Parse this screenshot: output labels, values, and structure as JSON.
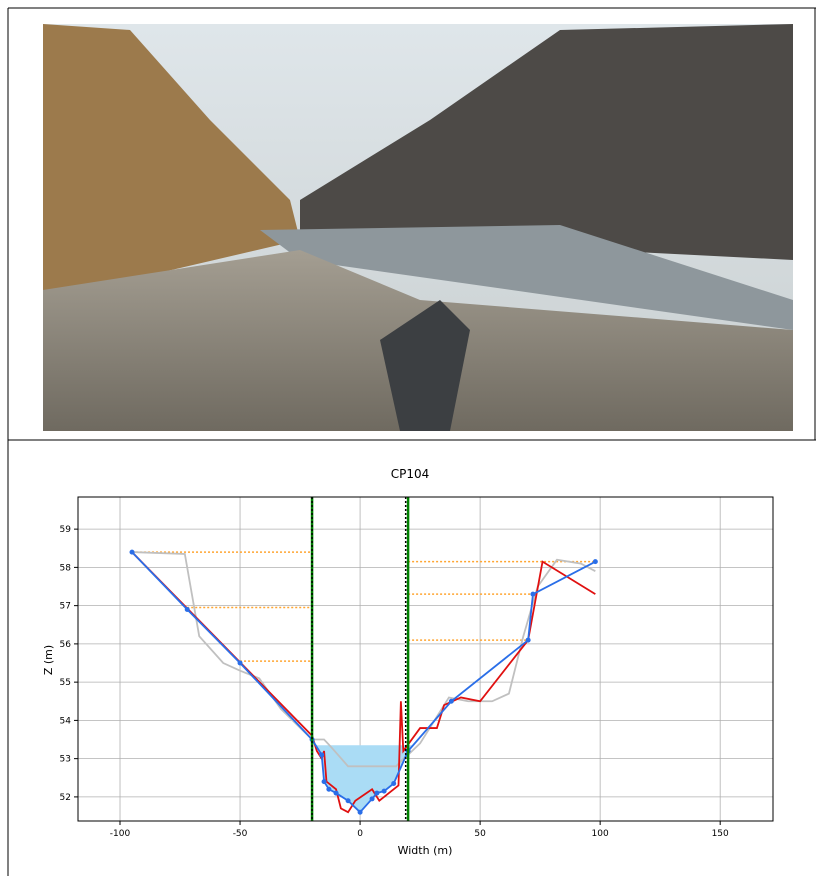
{
  "chart_data": {
    "type": "line",
    "title": "CP104",
    "xlabel": "Width (m)",
    "ylabel": "Z (m)",
    "xlim": [
      -117.5,
      172
    ],
    "ylim": [
      51.37,
      59.84
    ],
    "xticks": [
      -100,
      -50,
      0,
      50,
      100,
      150
    ],
    "yticks": [
      52,
      53,
      54,
      55,
      56,
      57,
      58,
      59
    ],
    "grid": true,
    "water_level": 53.35,
    "water_color": "#aadcf5",
    "series": [
      {
        "color": "#c0c0c0",
        "x": [
          -95,
          -73,
          -67,
          -57,
          -50,
          -42,
          -33,
          -20,
          -15,
          -12,
          -5,
          15,
          18,
          20,
          25,
          30,
          37,
          45,
          55,
          62,
          68,
          74,
          82,
          92,
          98
        ],
        "values": [
          58.4,
          58.35,
          56.2,
          55.5,
          55.3,
          55.1,
          54.3,
          53.5,
          53.5,
          53.3,
          52.8,
          52.8,
          53.0,
          53.1,
          53.4,
          53.9,
          54.6,
          54.5,
          54.5,
          54.7,
          56.2,
          57.5,
          58.2,
          58.1,
          57.9
        ]
      },
      {
        "color": "#e01010",
        "x": [
          -95,
          -20,
          -18,
          -16,
          -15,
          -14,
          -10,
          -8,
          -5,
          -2,
          5,
          8,
          12,
          16,
          17,
          18,
          25,
          32,
          35,
          42,
          50,
          70,
          76,
          98
        ],
        "values": [
          58.4,
          53.6,
          53.2,
          53.0,
          53.2,
          52.4,
          52.2,
          51.7,
          51.6,
          51.9,
          52.2,
          51.9,
          52.1,
          52.3,
          54.5,
          53.2,
          53.8,
          53.8,
          54.4,
          54.6,
          54.5,
          56.1,
          58.15,
          57.3
        ]
      },
      {
        "color": "#2a6ee8",
        "markers": true,
        "x": [
          -95,
          -72,
          -50,
          -20,
          -16,
          -15,
          -13,
          -10,
          -5,
          0,
          5,
          7,
          10,
          14,
          20,
          38,
          70,
          72,
          98
        ],
        "values": [
          58.4,
          56.9,
          55.5,
          53.5,
          53.1,
          52.4,
          52.2,
          52.1,
          51.9,
          51.6,
          51.95,
          52.1,
          52.15,
          52.35,
          53.2,
          54.5,
          56.1,
          57.3,
          58.15
        ]
      }
    ],
    "hlines": [
      {
        "y": 58.4,
        "x0": -95,
        "x1": -20
      },
      {
        "y": 56.95,
        "x0": -72,
        "x1": -20
      },
      {
        "y": 55.55,
        "x0": -50,
        "x1": -20
      },
      {
        "y": 58.15,
        "x0": 20,
        "x1": 98
      },
      {
        "y": 57.3,
        "x0": 20,
        "x1": 72
      },
      {
        "y": 56.1,
        "x0": 20,
        "x1": 70
      }
    ],
    "hline_color": "#ffa530",
    "vlines": [
      {
        "x": -20,
        "color": "#008000"
      },
      {
        "x": 20,
        "color": "#008000"
      },
      {
        "x": -20,
        "color": "#000000",
        "dashed": true
      },
      {
        "x": 19,
        "color": "#000000",
        "dashed": true
      }
    ]
  }
}
